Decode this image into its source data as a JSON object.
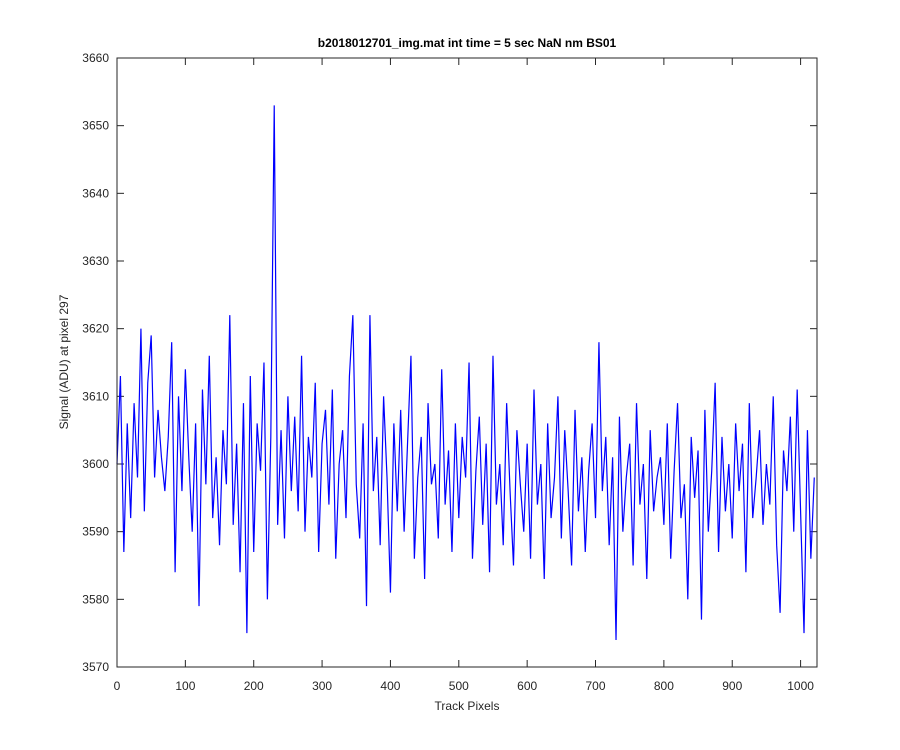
{
  "chart_data": {
    "type": "line",
    "title": "b2018012701_img.mat int time = 5 sec  NaN nm BS01",
    "xlabel": "Track Pixels",
    "ylabel": "Signal (ADU) at pixel 297",
    "x": [
      0,
      5,
      10,
      15,
      20,
      25,
      30,
      35,
      40,
      45,
      50,
      55,
      60,
      65,
      70,
      75,
      80,
      85,
      90,
      95,
      100,
      105,
      110,
      115,
      120,
      125,
      130,
      135,
      140,
      145,
      150,
      155,
      160,
      165,
      170,
      175,
      180,
      185,
      190,
      195,
      200,
      205,
      210,
      215,
      220,
      225,
      230,
      235,
      240,
      245,
      250,
      255,
      260,
      265,
      270,
      275,
      280,
      285,
      290,
      295,
      300,
      305,
      310,
      315,
      320,
      325,
      330,
      335,
      340,
      345,
      350,
      355,
      360,
      365,
      370,
      375,
      380,
      385,
      390,
      395,
      400,
      405,
      410,
      415,
      420,
      425,
      430,
      435,
      440,
      445,
      450,
      455,
      460,
      465,
      470,
      475,
      480,
      485,
      490,
      495,
      500,
      505,
      510,
      515,
      520,
      525,
      530,
      535,
      540,
      545,
      550,
      555,
      560,
      565,
      570,
      575,
      580,
      585,
      590,
      595,
      600,
      605,
      610,
      615,
      620,
      625,
      630,
      635,
      640,
      645,
      650,
      655,
      660,
      665,
      670,
      675,
      680,
      685,
      690,
      695,
      700,
      705,
      710,
      715,
      720,
      725,
      730,
      735,
      740,
      745,
      750,
      755,
      760,
      765,
      770,
      775,
      780,
      785,
      790,
      795,
      800,
      805,
      810,
      815,
      820,
      825,
      830,
      835,
      840,
      845,
      850,
      855,
      860,
      865,
      870,
      875,
      880,
      885,
      890,
      895,
      900,
      905,
      910,
      915,
      920,
      925,
      930,
      935,
      940,
      945,
      950,
      955,
      960,
      965,
      970,
      975,
      980,
      985,
      990,
      995,
      1000,
      1005,
      1010,
      1015,
      1020
    ],
    "series": [
      {
        "name": "signal",
        "color": "#0000ff",
        "values": [
          3600,
          3613,
          3587,
          3606,
          3592,
          3609,
          3598,
          3620,
          3593,
          3612,
          3619,
          3598,
          3608,
          3601,
          3596,
          3604,
          3618,
          3584,
          3610,
          3596,
          3614,
          3601,
          3590,
          3606,
          3579,
          3611,
          3597,
          3616,
          3592,
          3601,
          3588,
          3605,
          3597,
          3622,
          3591,
          3603,
          3584,
          3609,
          3575,
          3613,
          3587,
          3606,
          3599,
          3615,
          3580,
          3604,
          3653,
          3591,
          3605,
          3589,
          3610,
          3596,
          3607,
          3593,
          3616,
          3590,
          3604,
          3598,
          3612,
          3587,
          3603,
          3608,
          3594,
          3611,
          3586,
          3600,
          3605,
          3592,
          3613,
          3622,
          3597,
          3589,
          3606,
          3579,
          3622,
          3596,
          3604,
          3588,
          3610,
          3598,
          3581,
          3606,
          3593,
          3608,
          3590,
          3603,
          3616,
          3586,
          3598,
          3604,
          3583,
          3609,
          3597,
          3600,
          3589,
          3614,
          3594,
          3602,
          3587,
          3606,
          3592,
          3604,
          3598,
          3615,
          3586,
          3599,
          3607,
          3591,
          3603,
          3584,
          3616,
          3594,
          3600,
          3588,
          3609,
          3596,
          3585,
          3605,
          3597,
          3590,
          3603,
          3586,
          3611,
          3594,
          3600,
          3583,
          3606,
          3592,
          3598,
          3610,
          3589,
          3605,
          3596,
          3585,
          3608,
          3593,
          3601,
          3587,
          3599,
          3606,
          3592,
          3618,
          3596,
          3604,
          3588,
          3601,
          3574,
          3607,
          3590,
          3598,
          3603,
          3585,
          3609,
          3594,
          3600,
          3583,
          3605,
          3593,
          3598,
          3601,
          3591,
          3606,
          3586,
          3599,
          3609,
          3592,
          3597,
          3580,
          3604,
          3595,
          3602,
          3577,
          3608,
          3590,
          3599,
          3612,
          3587,
          3604,
          3593,
          3600,
          3589,
          3606,
          3596,
          3603,
          3584,
          3609,
          3592,
          3598,
          3605,
          3591,
          3600,
          3594,
          3610,
          3588,
          3578,
          3602,
          3596,
          3607,
          3590,
          3611,
          3593,
          3575,
          3605,
          3586,
          3598
        ]
      }
    ],
    "xlim": [
      0,
      1024
    ],
    "ylim": [
      3570,
      3660
    ],
    "xticks": [
      0,
      100,
      200,
      300,
      400,
      500,
      600,
      700,
      800,
      900,
      1000
    ],
    "yticks": [
      3570,
      3580,
      3590,
      3600,
      3610,
      3620,
      3630,
      3640,
      3650,
      3660
    ],
    "grid": false
  }
}
